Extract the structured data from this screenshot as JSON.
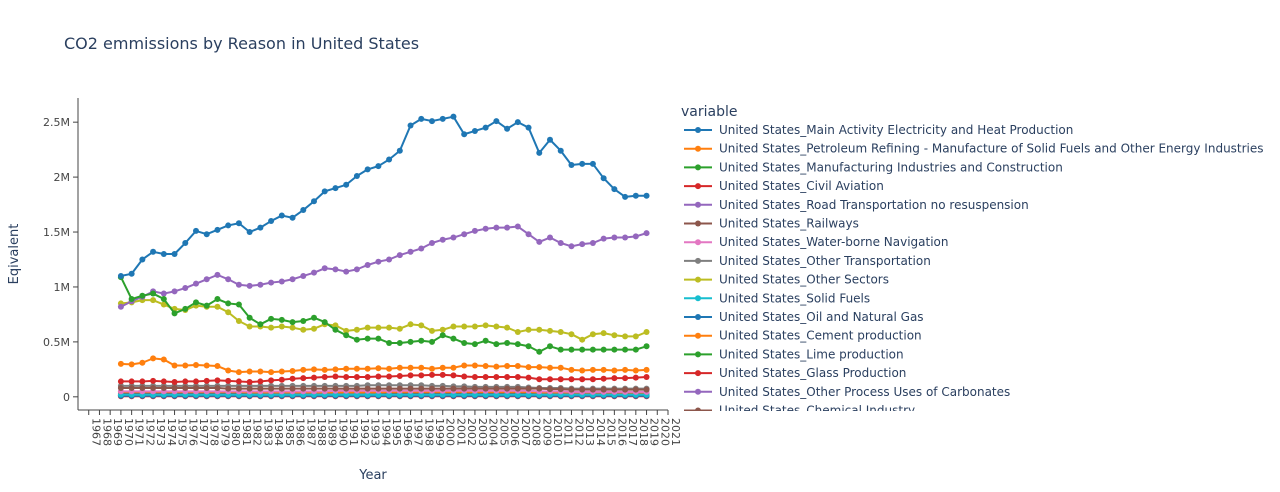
{
  "chart_data": {
    "type": "line",
    "title": "CO2 emmissions by Reason in United States",
    "xlabel": "Year",
    "ylabel": "Eqivalent",
    "legend_title": "variable",
    "legend_position": "right",
    "grid": false,
    "ylim": [
      -120000,
      2720000
    ],
    "xlim": [
      1966,
      2021
    ],
    "y_ticks": [
      {
        "value": 0,
        "label": "0"
      },
      {
        "value": 500000,
        "label": "0.5M"
      },
      {
        "value": 1000000,
        "label": "1M"
      },
      {
        "value": 1500000,
        "label": "1.5M"
      },
      {
        "value": 2000000,
        "label": "2M"
      },
      {
        "value": 2500000,
        "label": "2.5M"
      }
    ],
    "x_tick_labels": [
      "1967",
      "1968",
      "1969",
      "1970",
      "1971",
      "1972",
      "1973",
      "1974",
      "1975",
      "1976",
      "1977",
      "1978",
      "1979",
      "1980",
      "1981",
      "1982",
      "1983",
      "1984",
      "1985",
      "1986",
      "1987",
      "1988",
      "1989",
      "1990",
      "1991",
      "1992",
      "1993",
      "1994",
      "1995",
      "1996",
      "1997",
      "1998",
      "1999",
      "2000",
      "2001",
      "2002",
      "2003",
      "2004",
      "2005",
      "2006",
      "2007",
      "2008",
      "2009",
      "2010",
      "2011",
      "2012",
      "2013",
      "2014",
      "2015",
      "2016",
      "2017",
      "2018",
      "2019",
      "2020",
      "2021"
    ],
    "x": [
      1970,
      1971,
      1972,
      1973,
      1974,
      1975,
      1976,
      1977,
      1978,
      1979,
      1980,
      1981,
      1982,
      1983,
      1984,
      1985,
      1986,
      1987,
      1988,
      1989,
      1990,
      1991,
      1992,
      1993,
      1994,
      1995,
      1996,
      1997,
      1998,
      1999,
      2000,
      2001,
      2002,
      2003,
      2004,
      2005,
      2006,
      2007,
      2008,
      2009,
      2010,
      2011,
      2012,
      2013,
      2014,
      2015,
      2016,
      2017,
      2018,
      2019
    ],
    "series": [
      {
        "name": "United States_Main Activity Electricity and Heat Production",
        "color": "#1f77b4",
        "values": [
          1100000,
          1120000,
          1250000,
          1320000,
          1300000,
          1300000,
          1400000,
          1510000,
          1480000,
          1520000,
          1560000,
          1580000,
          1500000,
          1540000,
          1600000,
          1650000,
          1630000,
          1700000,
          1780000,
          1870000,
          1900000,
          1930000,
          2010000,
          2070000,
          2100000,
          2160000,
          2240000,
          2470000,
          2530000,
          2510000,
          2530000,
          2550000,
          2390000,
          2420000,
          2450000,
          2510000,
          2440000,
          2500000,
          2450000,
          2220000,
          2340000,
          2240000,
          2110000,
          2120000,
          2120000,
          1990000,
          1890000,
          1820000,
          1830000,
          1830000
        ]
      },
      {
        "name": "United States_Petroleum Refining - Manufacture of Solid Fuels and Other Energy Industries",
        "color": "#ff7f0e",
        "values": [
          300000,
          295000,
          310000,
          350000,
          340000,
          285000,
          285000,
          290000,
          285000,
          280000,
          240000,
          225000,
          230000,
          230000,
          225000,
          230000,
          235000,
          245000,
          250000,
          245000,
          250000,
          255000,
          255000,
          255000,
          260000,
          255000,
          265000,
          265000,
          265000,
          255000,
          265000,
          265000,
          285000,
          285000,
          280000,
          275000,
          280000,
          280000,
          270000,
          270000,
          265000,
          265000,
          245000,
          240000,
          245000,
          245000,
          240000,
          245000,
          240000,
          245000
        ]
      },
      {
        "name": "United States_Manufacturing Industries and Construction",
        "color": "#2ca02c",
        "values": [
          1090000,
          890000,
          920000,
          940000,
          890000,
          760000,
          800000,
          860000,
          830000,
          890000,
          850000,
          840000,
          720000,
          660000,
          710000,
          700000,
          680000,
          690000,
          720000,
          680000,
          610000,
          560000,
          520000,
          530000,
          530000,
          490000,
          490000,
          500000,
          510000,
          500000,
          560000,
          530000,
          490000,
          480000,
          510000,
          480000,
          490000,
          480000,
          460000,
          410000,
          460000,
          430000,
          430000,
          430000,
          430000,
          430000,
          430000,
          430000,
          430000,
          460000
        ]
      },
      {
        "name": "United States_Civil Aviation",
        "color": "#d62728",
        "values": [
          140000,
          140000,
          140000,
          145000,
          140000,
          135000,
          140000,
          140000,
          145000,
          150000,
          145000,
          140000,
          135000,
          140000,
          150000,
          155000,
          165000,
          170000,
          175000,
          180000,
          185000,
          180000,
          180000,
          180000,
          185000,
          185000,
          190000,
          195000,
          195000,
          200000,
          200000,
          195000,
          185000,
          180000,
          180000,
          180000,
          180000,
          180000,
          175000,
          160000,
          160000,
          160000,
          160000,
          160000,
          160000,
          165000,
          170000,
          170000,
          175000,
          180000
        ]
      },
      {
        "name": "United States_Road Transportation no resuspension",
        "color": "#9467bd",
        "values": [
          820000,
          870000,
          910000,
          960000,
          940000,
          960000,
          990000,
          1030000,
          1070000,
          1110000,
          1070000,
          1020000,
          1010000,
          1020000,
          1040000,
          1050000,
          1070000,
          1100000,
          1130000,
          1170000,
          1160000,
          1140000,
          1160000,
          1200000,
          1230000,
          1250000,
          1290000,
          1320000,
          1350000,
          1400000,
          1430000,
          1450000,
          1480000,
          1510000,
          1530000,
          1540000,
          1540000,
          1550000,
          1480000,
          1410000,
          1450000,
          1400000,
          1370000,
          1390000,
          1400000,
          1440000,
          1450000,
          1450000,
          1460000,
          1490000
        ]
      },
      {
        "name": "United States_Railways",
        "color": "#8c564b",
        "values": [
          80000,
          80000,
          80000,
          80000,
          80000,
          80000,
          80000,
          80000,
          80000,
          80000,
          75000,
          75000,
          75000,
          75000,
          75000,
          75000,
          75000,
          75000,
          75000,
          75000,
          75000,
          75000,
          75000,
          75000,
          75000,
          75000,
          75000,
          75000,
          75000,
          75000,
          75000,
          75000,
          75000,
          75000,
          75000,
          75000,
          75000,
          75000,
          75000,
          75000,
          70000,
          70000,
          65000,
          65000,
          65000,
          65000,
          65000,
          65000,
          65000,
          65000
        ]
      },
      {
        "name": "United States_Water-borne Navigation",
        "color": "#e377c2",
        "values": [
          50000,
          50000,
          50000,
          50000,
          50000,
          50000,
          50000,
          50000,
          50000,
          50000,
          50000,
          50000,
          50000,
          50000,
          50000,
          50000,
          50000,
          50000,
          50000,
          50000,
          55000,
          55000,
          55000,
          55000,
          55000,
          55000,
          55000,
          55000,
          55000,
          55000,
          55000,
          55000,
          55000,
          55000,
          55000,
          55000,
          55000,
          55000,
          55000,
          50000,
          50000,
          50000,
          45000,
          45000,
          45000,
          45000,
          45000,
          45000,
          45000,
          45000
        ]
      },
      {
        "name": "United States_Other Transportation",
        "color": "#7f7f7f",
        "values": [
          100000,
          100000,
          100000,
          100000,
          100000,
          100000,
          100000,
          100000,
          100000,
          100000,
          100000,
          100000,
          100000,
          100000,
          100000,
          100000,
          100000,
          100000,
          100000,
          100000,
          100000,
          100000,
          100000,
          105000,
          105000,
          105000,
          105000,
          105000,
          105000,
          100000,
          100000,
          95000,
          95000,
          90000,
          90000,
          90000,
          90000,
          90000,
          85000,
          80000,
          80000,
          80000,
          75000,
          75000,
          75000,
          75000,
          75000,
          75000,
          75000,
          75000
        ]
      },
      {
        "name": "United States_Other Sectors",
        "color": "#bcbd22",
        "values": [
          850000,
          860000,
          880000,
          880000,
          840000,
          800000,
          790000,
          830000,
          820000,
          820000,
          770000,
          690000,
          640000,
          640000,
          630000,
          640000,
          630000,
          610000,
          620000,
          660000,
          650000,
          600000,
          610000,
          630000,
          630000,
          630000,
          620000,
          660000,
          650000,
          600000,
          610000,
          640000,
          640000,
          640000,
          650000,
          640000,
          630000,
          590000,
          610000,
          610000,
          600000,
          590000,
          570000,
          520000,
          570000,
          580000,
          560000,
          550000,
          550000,
          590000
        ]
      },
      {
        "name": "United States_Solid Fuels",
        "color": "#17becf",
        "values": [
          20000,
          20000,
          20000,
          20000,
          20000,
          20000,
          20000,
          20000,
          20000,
          20000,
          20000,
          20000,
          20000,
          20000,
          20000,
          20000,
          20000,
          20000,
          20000,
          20000,
          20000,
          20000,
          20000,
          20000,
          20000,
          20000,
          20000,
          20000,
          20000,
          20000,
          20000,
          20000,
          20000,
          20000,
          20000,
          20000,
          20000,
          20000,
          20000,
          20000,
          20000,
          20000,
          20000,
          20000,
          20000,
          20000,
          20000,
          20000,
          20000,
          20000
        ]
      },
      {
        "name": "United States_Oil and Natural Gas",
        "color": "#1f77b4",
        "values": [
          10000,
          10000,
          10000,
          10000,
          10000,
          10000,
          10000,
          10000,
          10000,
          10000,
          10000,
          10000,
          10000,
          10000,
          10000,
          10000,
          10000,
          10000,
          10000,
          10000,
          10000,
          10000,
          10000,
          10000,
          10000,
          10000,
          10000,
          10000,
          10000,
          10000,
          10000,
          10000,
          10000,
          10000,
          10000,
          10000,
          10000,
          10000,
          10000,
          10000,
          10000,
          10000,
          10000,
          10000,
          10000,
          10000,
          10000,
          10000,
          10000,
          10000
        ]
      },
      {
        "name": "United States_Cement production",
        "color": "#ff7f0e",
        "values": [
          45000,
          45000,
          45000,
          45000,
          45000,
          45000,
          45000,
          45000,
          45000,
          45000,
          45000,
          45000,
          40000,
          40000,
          40000,
          40000,
          40000,
          40000,
          40000,
          40000,
          40000,
          40000,
          40000,
          40000,
          40000,
          45000,
          45000,
          45000,
          45000,
          45000,
          45000,
          45000,
          45000,
          45000,
          45000,
          45000,
          45000,
          45000,
          45000,
          40000,
          40000,
          40000,
          40000,
          40000,
          40000,
          40000,
          40000,
          40000,
          40000,
          40000
        ]
      },
      {
        "name": "United States_Lime production",
        "color": "#2ca02c",
        "values": [
          15000,
          15000,
          15000,
          15000,
          15000,
          15000,
          15000,
          15000,
          15000,
          15000,
          15000,
          15000,
          15000,
          15000,
          15000,
          15000,
          15000,
          15000,
          15000,
          15000,
          15000,
          15000,
          15000,
          15000,
          15000,
          15000,
          15000,
          15000,
          15000,
          15000,
          15000,
          15000,
          15000,
          15000,
          15000,
          15000,
          15000,
          15000,
          15000,
          15000,
          15000,
          15000,
          15000,
          15000,
          15000,
          15000,
          15000,
          15000,
          15000,
          15000
        ]
      },
      {
        "name": "United States_Glass Production",
        "color": "#d62728",
        "values": [
          5000,
          5000,
          5000,
          5000,
          5000,
          5000,
          5000,
          5000,
          5000,
          5000,
          5000,
          5000,
          5000,
          5000,
          5000,
          5000,
          5000,
          5000,
          5000,
          5000,
          5000,
          5000,
          5000,
          5000,
          5000,
          5000,
          5000,
          5000,
          5000,
          5000,
          5000,
          5000,
          5000,
          5000,
          5000,
          5000,
          5000,
          5000,
          5000,
          5000,
          5000,
          5000,
          5000,
          5000,
          5000,
          5000,
          5000,
          5000,
          5000,
          5000
        ]
      },
      {
        "name": "United States_Other Process Uses of Carbonates",
        "color": "#9467bd",
        "values": [
          8000,
          8000,
          8000,
          8000,
          8000,
          8000,
          8000,
          8000,
          8000,
          8000,
          8000,
          8000,
          8000,
          8000,
          8000,
          8000,
          8000,
          8000,
          8000,
          8000,
          8000,
          8000,
          8000,
          8000,
          8000,
          8000,
          8000,
          8000,
          8000,
          8000,
          8000,
          8000,
          8000,
          8000,
          8000,
          8000,
          8000,
          8000,
          8000,
          8000,
          8000,
          8000,
          8000,
          8000,
          8000,
          8000,
          8000,
          8000,
          8000,
          8000
        ]
      },
      {
        "name": "United States_Chemical Industry",
        "color": "#8c564b",
        "values": [
          30000,
          30000,
          30000,
          30000,
          30000,
          30000,
          30000,
          30000,
          30000,
          30000,
          30000,
          30000,
          30000,
          30000,
          30000,
          30000,
          30000,
          30000,
          30000,
          30000,
          30000,
          30000,
          30000,
          30000,
          30000,
          30000,
          30000,
          30000,
          30000,
          30000,
          30000,
          30000,
          30000,
          30000,
          30000,
          30000,
          30000,
          30000,
          30000,
          30000,
          30000,
          30000,
          30000,
          30000,
          30000,
          30000,
          30000,
          30000,
          30000,
          30000
        ]
      }
    ]
  }
}
